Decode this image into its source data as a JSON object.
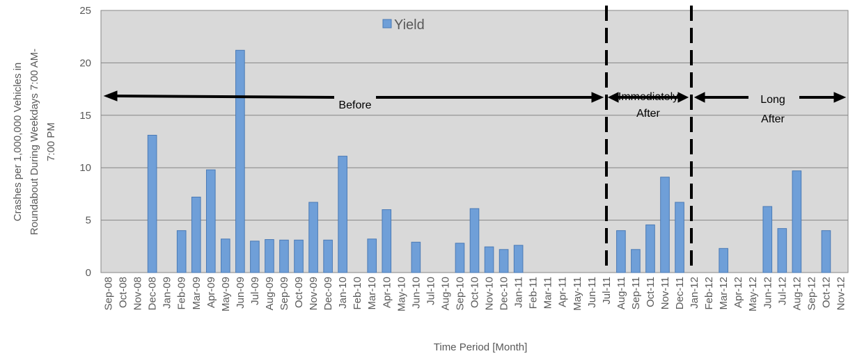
{
  "chart_data": {
    "type": "bar",
    "xlabel": "Time Period [Month]",
    "ylabel": [
      "Crashes per 1,000,000 Vehicles in",
      "Roundabout During Weekdays 7:00 AM-",
      "7:00 PM"
    ],
    "categories": [
      "Sep-08",
      "Oct-08",
      "Nov-08",
      "Dec-08",
      "Jan-09",
      "Feb-09",
      "Mar-09",
      "Apr-09",
      "May-09",
      "Jun-09",
      "Jul-09",
      "Aug-09",
      "Sep-09",
      "Oct-09",
      "Nov-09",
      "Dec-09",
      "Jan-10",
      "Feb-10",
      "Mar-10",
      "Apr-10",
      "May-10",
      "Jun-10",
      "Jul-10",
      "Aug-10",
      "Sep-10",
      "Oct-10",
      "Nov-10",
      "Dec-10",
      "Jan-11",
      "Feb-11",
      "Mar-11",
      "Apr-11",
      "May-11",
      "Jun-11",
      "Jul-11",
      "Aug-11",
      "Sep-11",
      "Oct-11",
      "Nov-11",
      "Dec-11",
      "Jan-12",
      "Feb-12",
      "Mar-12",
      "Apr-12",
      "May-12",
      "Jun-12",
      "Jul-12",
      "Aug-12",
      "Sep-12",
      "Oct-12",
      "Nov-12"
    ],
    "series": [
      {
        "name": "Yield",
        "color": "#6f9fd8",
        "values": [
          0,
          0,
          0,
          13.1,
          0,
          4.0,
          7.2,
          9.8,
          3.2,
          21.2,
          3.0,
          3.15,
          3.1,
          3.1,
          6.7,
          3.1,
          11.1,
          0,
          3.2,
          6.0,
          0,
          2.9,
          0,
          0,
          2.8,
          6.1,
          2.45,
          2.2,
          2.6,
          0,
          0,
          0,
          0,
          0,
          0,
          4.0,
          2.2,
          4.55,
          9.1,
          6.7,
          0,
          0,
          2.3,
          0,
          0,
          6.3,
          4.2,
          9.7,
          0,
          4.0,
          0
        ]
      }
    ],
    "ylim": [
      0,
      25
    ],
    "yticks": [
      0,
      5,
      10,
      15,
      20,
      25
    ],
    "grid": true,
    "annotations": [
      "Before",
      "Immediately",
      "After",
      "Long",
      "After"
    ]
  }
}
